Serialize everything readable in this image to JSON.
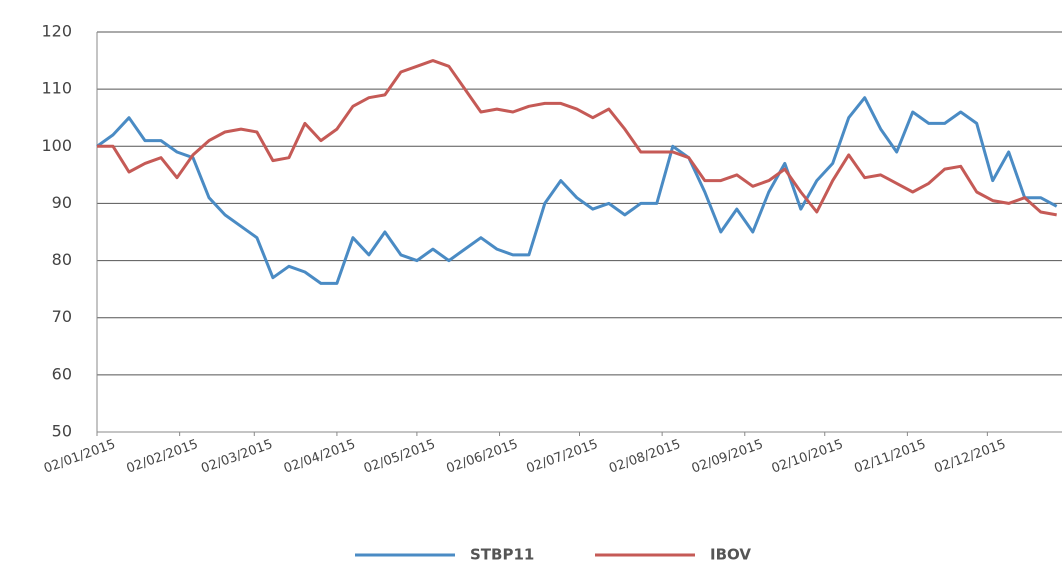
{
  "chart_data": {
    "type": "line",
    "x": [
      "2015-01-02",
      "2015-01-08",
      "2015-01-14",
      "2015-01-20",
      "2015-01-26",
      "2015-02-01",
      "2015-02-07",
      "2015-02-13",
      "2015-02-19",
      "2015-02-25",
      "2015-03-03",
      "2015-03-09",
      "2015-03-15",
      "2015-03-21",
      "2015-03-27",
      "2015-04-02",
      "2015-04-08",
      "2015-04-14",
      "2015-04-20",
      "2015-04-26",
      "2015-05-02",
      "2015-05-08",
      "2015-05-14",
      "2015-05-20",
      "2015-05-26",
      "2015-06-01",
      "2015-06-07",
      "2015-06-13",
      "2015-06-19",
      "2015-06-25",
      "2015-07-01",
      "2015-07-07",
      "2015-07-13",
      "2015-07-19",
      "2015-07-25",
      "2015-07-31",
      "2015-08-06",
      "2015-08-12",
      "2015-08-18",
      "2015-08-24",
      "2015-08-30",
      "2015-09-05",
      "2015-09-11",
      "2015-09-17",
      "2015-09-23",
      "2015-09-29",
      "2015-10-05",
      "2015-10-11",
      "2015-10-17",
      "2015-10-23",
      "2015-10-29",
      "2015-11-04",
      "2015-11-10",
      "2015-11-16",
      "2015-11-22",
      "2015-11-28",
      "2015-12-04",
      "2015-12-10",
      "2015-12-16",
      "2015-12-22",
      "2015-12-28"
    ],
    "series": [
      {
        "name": "STBP11",
        "color": "#4a8bc4",
        "values": [
          100,
          102,
          105,
          101,
          101,
          99,
          98,
          91,
          88,
          86,
          84,
          77,
          79,
          78,
          76,
          76,
          84,
          81,
          85,
          81,
          80,
          82,
          80,
          82,
          84,
          82,
          81,
          81,
          90,
          94,
          91,
          89,
          90,
          88,
          90,
          90,
          100,
          98,
          92,
          85,
          89,
          85,
          92,
          97,
          89,
          94,
          97,
          105,
          108.5,
          103,
          99,
          106,
          104,
          104,
          106,
          104,
          94,
          99,
          91,
          91,
          89.5
        ]
      },
      {
        "name": "IBOV",
        "color": "#c55a56",
        "values": [
          100,
          100,
          95.5,
          97,
          98,
          94.5,
          98.5,
          101,
          102.5,
          103,
          102.5,
          97.5,
          98,
          104,
          101,
          103,
          107,
          108.5,
          109,
          113,
          114,
          115,
          114,
          110,
          106,
          106.5,
          106,
          107,
          107.5,
          107.5,
          106.5,
          105,
          106.5,
          103,
          99,
          99,
          99,
          98,
          94,
          94,
          95,
          93,
          94,
          96,
          92,
          88.5,
          94,
          98.5,
          94.5,
          95,
          93.5,
          92,
          93.5,
          96,
          96.5,
          92,
          90.5,
          90,
          91,
          88.5,
          88
        ]
      }
    ],
    "xlim": [
      "2015-01-02",
      "2015-12-30"
    ],
    "xticks": [
      {
        "value": "2015-01-02",
        "label": "02/01/2015"
      },
      {
        "value": "2015-02-02",
        "label": "02/02/2015"
      },
      {
        "value": "2015-03-02",
        "label": "02/03/2015"
      },
      {
        "value": "2015-04-02",
        "label": "02/04/2015"
      },
      {
        "value": "2015-05-02",
        "label": "02/05/2015"
      },
      {
        "value": "2015-06-02",
        "label": "02/06/2015"
      },
      {
        "value": "2015-07-02",
        "label": "02/07/2015"
      },
      {
        "value": "2015-08-02",
        "label": "02/08/2015"
      },
      {
        "value": "2015-09-02",
        "label": "02/09/2015"
      },
      {
        "value": "2015-10-02",
        "label": "02/10/2015"
      },
      {
        "value": "2015-11-02",
        "label": "02/11/2015"
      },
      {
        "value": "2015-12-02",
        "label": "02/12/2015"
      }
    ],
    "ylim": [
      50,
      120
    ],
    "yticks": [
      50,
      60,
      70,
      80,
      90,
      100,
      110,
      120
    ],
    "grid": true,
    "legend": "bottom"
  }
}
